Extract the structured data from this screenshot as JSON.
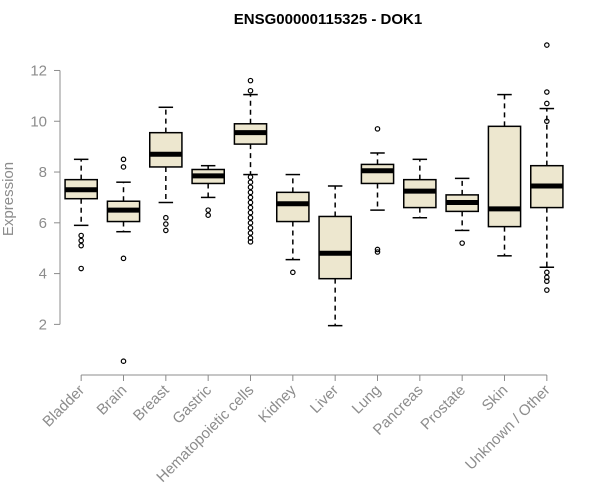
{
  "chart_data": {
    "type": "boxplot",
    "title": "ENSG00000115325 - DOK1",
    "ylabel": "Expression",
    "xlabel": "",
    "ylim": [
      0.4,
      13.2
    ],
    "yticks": [
      2,
      4,
      6,
      8,
      10,
      12
    ],
    "box_color": "#ede7cf",
    "categories": [
      "Bladder",
      "Brain",
      "Breast",
      "Gastric",
      "Hematopoietic cells",
      "Kidney",
      "Liver",
      "Lung",
      "Pancreas",
      "Prostate",
      "Skin",
      "Unknown / Other"
    ],
    "boxes": [
      {
        "q1": 6.95,
        "median": 7.3,
        "q3": 7.7,
        "whisker_low": 5.9,
        "whisker_high": 8.5,
        "outliers": [
          5.5,
          5.3,
          5.1,
          4.2
        ]
      },
      {
        "q1": 6.05,
        "median": 6.5,
        "q3": 6.85,
        "whisker_low": 5.65,
        "whisker_high": 7.6,
        "outliers": [
          8.2,
          8.5,
          4.6,
          0.55
        ]
      },
      {
        "q1": 8.2,
        "median": 8.7,
        "q3": 9.55,
        "whisker_low": 6.8,
        "whisker_high": 10.55,
        "outliers": [
          6.2,
          5.95,
          5.7
        ]
      },
      {
        "q1": 7.55,
        "median": 7.85,
        "q3": 8.1,
        "whisker_low": 7.0,
        "whisker_high": 8.25,
        "outliers": [
          6.5,
          6.3
        ]
      },
      {
        "q1": 9.1,
        "median": 9.55,
        "q3": 9.9,
        "whisker_low": 7.9,
        "whisker_high": 11.05,
        "outliers": [
          11.6,
          11.2,
          7.8,
          7.6,
          7.4,
          7.2,
          7.0,
          6.8,
          6.6,
          6.4,
          6.2,
          6.0,
          5.8,
          5.6,
          5.4,
          5.25
        ]
      },
      {
        "q1": 6.05,
        "median": 6.75,
        "q3": 7.2,
        "whisker_low": 4.55,
        "whisker_high": 7.9,
        "outliers": [
          4.05
        ]
      },
      {
        "q1": 3.8,
        "median": 4.8,
        "q3": 6.25,
        "whisker_low": 1.95,
        "whisker_high": 7.45,
        "outliers": []
      },
      {
        "q1": 7.55,
        "median": 8.05,
        "q3": 8.3,
        "whisker_low": 6.5,
        "whisker_high": 8.75,
        "outliers": [
          9.7,
          4.95,
          4.85
        ]
      },
      {
        "q1": 6.6,
        "median": 7.25,
        "q3": 7.7,
        "whisker_low": 6.2,
        "whisker_high": 8.5,
        "outliers": []
      },
      {
        "q1": 6.45,
        "median": 6.8,
        "q3": 7.1,
        "whisker_low": 5.7,
        "whisker_high": 7.75,
        "outliers": [
          5.2
        ]
      },
      {
        "q1": 5.85,
        "median": 6.55,
        "q3": 9.8,
        "whisker_low": 4.7,
        "whisker_high": 11.05,
        "outliers": []
      },
      {
        "q1": 6.6,
        "median": 7.45,
        "q3": 8.25,
        "whisker_low": 4.25,
        "whisker_high": 10.5,
        "outliers": [
          13.0,
          11.15,
          10.7,
          10.0,
          4.05,
          3.85,
          3.7,
          3.35
        ]
      }
    ]
  }
}
